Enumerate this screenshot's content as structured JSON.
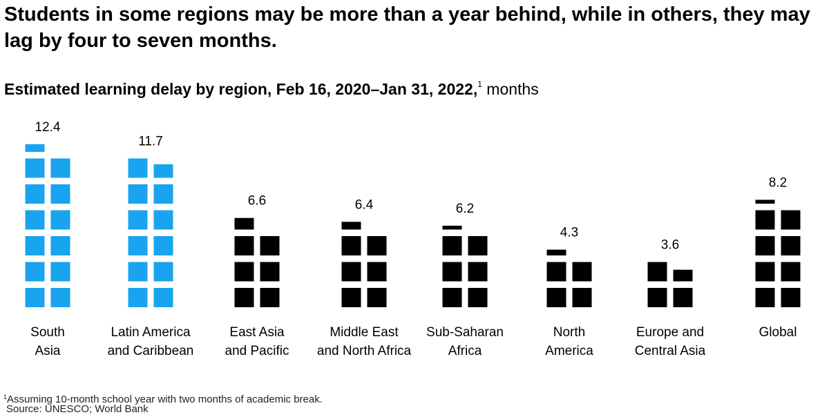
{
  "headline": "Students in some regions may be more than a year behind, while in others, they may lag by four to seven months.",
  "subtitle": {
    "main": "Estimated learning delay by region, Feb 16, 2020–Jan 31, 2022,",
    "footnote_marker": "1",
    "unit": "months"
  },
  "chart_data": {
    "type": "bar",
    "title": "Estimated learning delay by region, Feb 16, 2020–Jan 31, 2022",
    "ylabel": "months",
    "categories": [
      [
        "South",
        "Asia"
      ],
      [
        "Latin America",
        "and Caribbean"
      ],
      [
        "East Asia",
        "and Pacific"
      ],
      [
        "Middle East",
        "and North Africa"
      ],
      [
        "Sub-Saharan",
        "Africa"
      ],
      [
        "North",
        "America"
      ],
      [
        "Europe and",
        "Central Asia"
      ],
      [
        "Global"
      ]
    ],
    "values": [
      12.4,
      11.7,
      6.6,
      6.4,
      6.2,
      4.3,
      3.6,
      8.2
    ],
    "value_labels": [
      "12.4",
      "11.7",
      "6.6",
      "6.4",
      "6.2",
      "4.3",
      "3.6",
      "8.2"
    ],
    "highlight": [
      true,
      true,
      false,
      false,
      false,
      false,
      false,
      false
    ],
    "colors": {
      "highlight": "#1aa3ee",
      "default": "#000000"
    },
    "grid": false,
    "legend": "none"
  },
  "footnote": {
    "marker": "1",
    "text": "Assuming 10-month school year with two months of academic break."
  },
  "source": "Source: UNESCO; World Bank"
}
